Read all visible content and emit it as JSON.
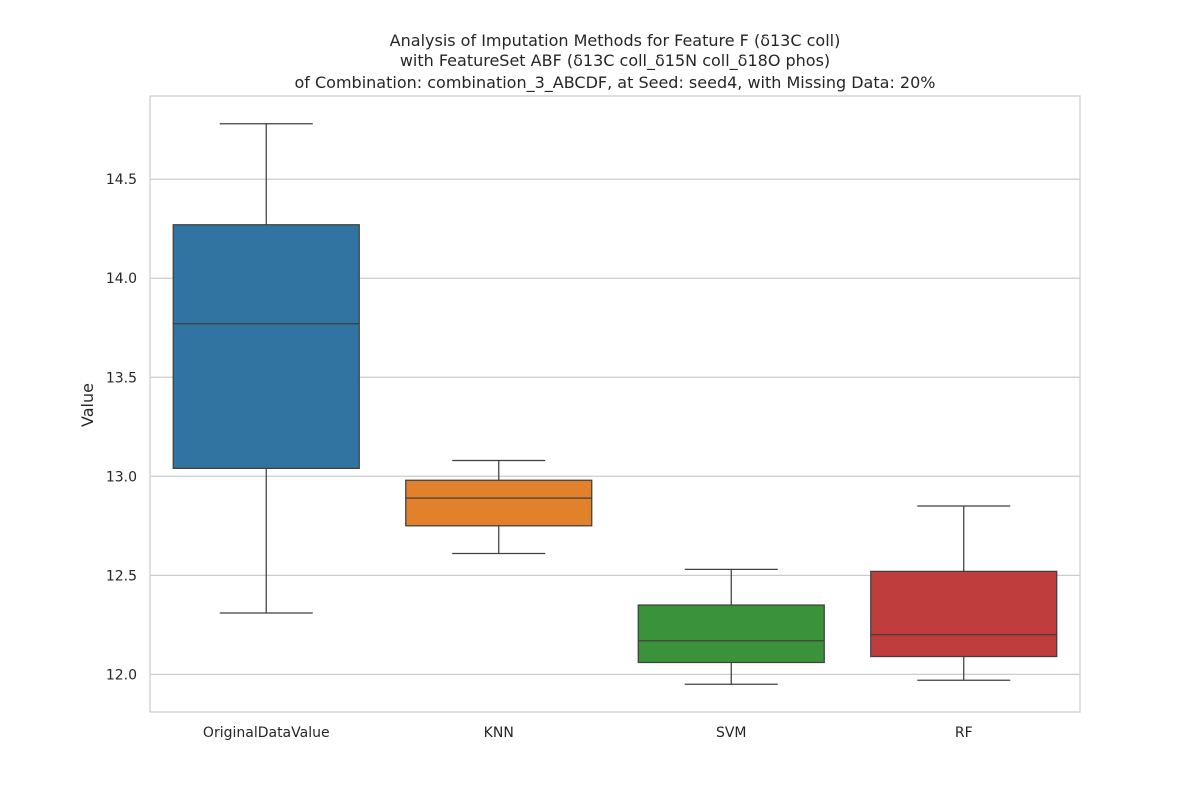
{
  "chart_data": {
    "type": "box",
    "title_lines": [
      "Analysis of Imputation Methods for Feature F (δ13C coll)",
      "with FeatureSet ABF (δ13C coll_δ15N coll_δ18O phos)",
      "of Combination: combination_3_ABCDF, at Seed: seed4, with Missing Data: 20%"
    ],
    "xlabel": "",
    "ylabel": "Value",
    "ylim": [
      11.81,
      14.92
    ],
    "yticks": [
      12.0,
      12.5,
      13.0,
      13.5,
      14.0,
      14.5
    ],
    "ytick_labels": [
      "12.0",
      "12.5",
      "13.0",
      "13.5",
      "14.0",
      "14.5"
    ],
    "grid": true,
    "categories": [
      "OriginalDataValue",
      "KNN",
      "SVM",
      "RF"
    ],
    "boxes": [
      {
        "category": "OriginalDataValue",
        "whisker_low": 12.31,
        "q1": 13.04,
        "median": 13.77,
        "q3": 14.27,
        "whisker_high": 14.78,
        "color": "#3274a1"
      },
      {
        "category": "KNN",
        "whisker_low": 12.61,
        "q1": 12.75,
        "median": 12.89,
        "q3": 12.98,
        "whisker_high": 13.08,
        "color": "#e1812c"
      },
      {
        "category": "SVM",
        "whisker_low": 11.95,
        "q1": 12.06,
        "median": 12.17,
        "q3": 12.35,
        "whisker_high": 12.53,
        "color": "#3a923a"
      },
      {
        "category": "RF",
        "whisker_low": 11.97,
        "q1": 12.09,
        "median": 12.2,
        "q3": 12.52,
        "whisker_high": 12.85,
        "color": "#c03d3e"
      }
    ]
  }
}
